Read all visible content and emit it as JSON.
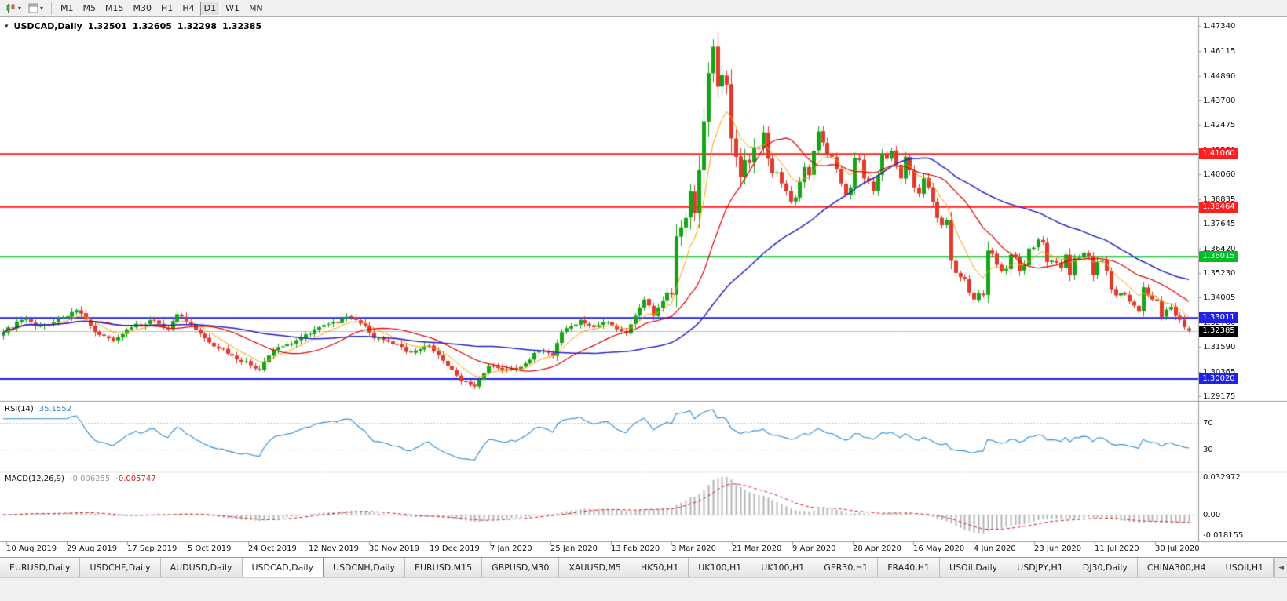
{
  "toolbar": {
    "timeframes": [
      "M1",
      "M5",
      "M15",
      "M30",
      "H1",
      "H4",
      "D1",
      "W1",
      "MN"
    ],
    "active_timeframe": "D1"
  },
  "icons": {
    "caret": "▾",
    "one_click_caret": "▾",
    "tab_scroll_left": "◄"
  },
  "quote_header": {
    "symbol": "USDCAD,Daily",
    "open": "1.32501",
    "high": "1.32605",
    "low": "1.32298",
    "close": "1.32385"
  },
  "tabs": {
    "active_index": 3,
    "items": [
      "EURUSD,Daily",
      "USDCHF,Daily",
      "AUDUSD,Daily",
      "USDCAD,Daily",
      "USDCNH,Daily",
      "EURUSD,M15",
      "GBPUSD,M30",
      "XAUUSD,M5",
      "HK50,H1",
      "UK100,H1",
      "UK100,H1",
      "GER30,H1",
      "FRA40,H1",
      "USOil,Daily",
      "USDJPY,H1",
      "DJ30,Daily",
      "CHINA300,H4",
      "USOil,H1"
    ]
  },
  "colors": {
    "bull_candle": "#17A317",
    "bear_candle": "#E03A2C",
    "current_price_line": "#C0C0C0",
    "chart_bg": "#FFFFFF"
  },
  "chart_data": {
    "type": "candlestick",
    "symbol": "USDCAD",
    "timeframe": "Daily",
    "bars": 260,
    "last_bar": {
      "open": 1.32501,
      "high": 1.32605,
      "low": 1.32298,
      "close": 1.32385
    },
    "peak_bar": {
      "index": 155,
      "high": 1.4668
    },
    "low_bar": {
      "index": 103,
      "low": 1.2952
    },
    "y_axis_labels": [
      "1.47340",
      "1.46115",
      "1.44890",
      "1.43700",
      "1.42475",
      "1.41250",
      "1.40060",
      "1.38835",
      "1.37645",
      "1.36420",
      "1.35230",
      "1.34005",
      "1.32780",
      "1.31590",
      "1.30365",
      "1.29175"
    ],
    "x_axis_labels": [
      "10 Aug 2019",
      "29 Aug 2019",
      "17 Sep 2019",
      "5 Oct 2019",
      "24 Oct 2019",
      "12 Nov 2019",
      "30 Nov 2019",
      "19 Dec 2019",
      "7 Jan 2020",
      "25 Jan 2020",
      "13 Feb 2020",
      "3 Mar 2020",
      "21 Mar 2020",
      "9 Apr 2020",
      "28 Apr 2020",
      "16 May 2020",
      "4 Jun 2020",
      "23 Jun 2020",
      "11 Jul 2020",
      "30 Jul 2020"
    ],
    "price_levels": [
      {
        "value": 1.4106,
        "label": "1.41060",
        "color": "#FF1F1F"
      },
      {
        "value": 1.38464,
        "label": "1.38464",
        "color": "#FF1F1F"
      },
      {
        "value": 1.36015,
        "label": "1.36015",
        "color": "#00BE26"
      },
      {
        "value": 1.33011,
        "label": "1.33011",
        "color": "#2121E8"
      },
      {
        "value": 1.3002,
        "label": "1.30020",
        "color": "#2121E8"
      }
    ],
    "current_price": {
      "value": 1.32385,
      "label": "1.32385",
      "color": "#000000"
    },
    "moving_averages": [
      {
        "name": "fast-ma",
        "period": 8,
        "method": "ema",
        "color": "#FFA000",
        "width": 1
      },
      {
        "name": "mid-ma",
        "period": 20,
        "method": "sma",
        "color": "#E00000",
        "width": 1.2
      },
      {
        "name": "slow-ma",
        "period": 50,
        "method": "sma",
        "color": "#2323CC",
        "width": 1.5
      }
    ],
    "indicators": {
      "rsi": {
        "label": "RSI(14)",
        "value": "35.1552",
        "period": 14,
        "levels": [
          70,
          30
        ],
        "color": "#2E8BD2",
        "level_line_color": "#C8C8C8"
      },
      "macd": {
        "label": "MACD(12,26,9)",
        "main_value": "-0.006255",
        "signal_value": "-0.005747",
        "fast": 12,
        "slow": 26,
        "signal": 9,
        "histogram_color": "#B4B4B4",
        "signal_color": "#D02020",
        "main_color": "#9A9A9A",
        "axis_labels": {
          "top": "0.032972",
          "zero": "0.00",
          "bottom": "-0.018155"
        }
      }
    },
    "close_path": [
      [
        0,
        1.323
      ],
      [
        4,
        1.3292
      ],
      [
        8,
        1.3262
      ],
      [
        13,
        1.33
      ],
      [
        16,
        1.334
      ],
      [
        20,
        1.3232
      ],
      [
        24,
        1.319
      ],
      [
        28,
        1.3256
      ],
      [
        33,
        1.3292
      ],
      [
        36,
        1.3246
      ],
      [
        38,
        1.332
      ],
      [
        44,
        1.3202
      ],
      [
        49,
        1.3126
      ],
      [
        56,
        1.3046
      ],
      [
        59,
        1.3146
      ],
      [
        64,
        1.3192
      ],
      [
        68,
        1.3246
      ],
      [
        71,
        1.3272
      ],
      [
        76,
        1.3306
      ],
      [
        79,
        1.3262
      ],
      [
        81,
        1.3202
      ],
      [
        85,
        1.3172
      ],
      [
        89,
        1.3132
      ],
      [
        93,
        1.3166
      ],
      [
        96,
        1.3092
      ],
      [
        100,
        1.2992
      ],
      [
        103,
        1.2966
      ],
      [
        106,
        1.3066
      ],
      [
        110,
        1.3046
      ],
      [
        113,
        1.3062
      ],
      [
        117,
        1.3142
      ],
      [
        120,
        1.3116
      ],
      [
        122,
        1.3232
      ],
      [
        126,
        1.3292
      ],
      [
        129,
        1.3256
      ],
      [
        132,
        1.3282
      ],
      [
        134,
        1.3246
      ],
      [
        136,
        1.3226
      ],
      [
        138,
        1.3312
      ],
      [
        140,
        1.3392
      ],
      [
        141,
        1.3362
      ],
      [
        142,
        1.3312
      ],
      [
        144,
        1.3386
      ],
      [
        145,
        1.3426
      ],
      [
        146,
        1.3416
      ],
      [
        147,
        1.3702
      ],
      [
        148,
        1.3746
      ],
      [
        149,
        1.3792
      ],
      [
        150,
        1.3922
      ],
      [
        151,
        1.3816
      ],
      [
        152,
        1.4026
      ],
      [
        153,
        1.4266
      ],
      [
        154,
        1.4502
      ],
      [
        155,
        1.4632
      ],
      [
        156,
        1.4436
      ],
      [
        157,
        1.4492
      ],
      [
        158,
        1.4446
      ],
      [
        159,
        1.4182
      ],
      [
        160,
        1.4092
      ],
      [
        161,
        1.3992
      ],
      [
        162,
        1.4076
      ],
      [
        163,
        1.4062
      ],
      [
        164,
        1.4136
      ],
      [
        165,
        1.4132
      ],
      [
        166,
        1.4212
      ],
      [
        167,
        1.4082
      ],
      [
        168,
        1.4012
      ],
      [
        169,
        1.4016
      ],
      [
        170,
        1.3962
      ],
      [
        171,
        1.3922
      ],
      [
        172,
        1.3872
      ],
      [
        173,
        1.3892
      ],
      [
        175,
        1.4042
      ],
      [
        176,
        1.4002
      ],
      [
        177,
        1.4122
      ],
      [
        178,
        1.4216
      ],
      [
        179,
        1.4162
      ],
      [
        180,
        1.4102
      ],
      [
        181,
        1.4092
      ],
      [
        182,
        1.4032
      ],
      [
        183,
        1.3962
      ],
      [
        184,
        1.3906
      ],
      [
        185,
        1.3942
      ],
      [
        186,
        1.4086
      ],
      [
        187,
        1.4076
      ],
      [
        188,
        1.3986
      ],
      [
        189,
        1.3972
      ],
      [
        190,
        1.3926
      ],
      [
        191,
        1.4002
      ],
      [
        192,
        1.4106
      ],
      [
        193,
        1.4082
      ],
      [
        194,
        1.4122
      ],
      [
        195,
        1.4052
      ],
      [
        196,
        1.3986
      ],
      [
        197,
        1.4092
      ],
      [
        198,
        1.4026
      ],
      [
        199,
        1.3942
      ],
      [
        200,
        1.3912
      ],
      [
        201,
        1.3986
      ],
      [
        202,
        1.3942
      ],
      [
        203,
        1.3872
      ],
      [
        204,
        1.3792
      ],
      [
        205,
        1.3756
      ],
      [
        206,
        1.3782
      ],
      [
        207,
        1.3582
      ],
      [
        208,
        1.3522
      ],
      [
        209,
        1.3502
      ],
      [
        210,
        1.3492
      ],
      [
        211,
        1.3426
      ],
      [
        212,
        1.3392
      ],
      [
        213,
        1.3422
      ],
      [
        214,
        1.3412
      ],
      [
        215,
        1.3632
      ],
      [
        216,
        1.3616
      ],
      [
        217,
        1.3562
      ],
      [
        218,
        1.3532
      ],
      [
        219,
        1.3542
      ],
      [
        220,
        1.3612
      ],
      [
        221,
        1.3602
      ],
      [
        222,
        1.3532
      ],
      [
        223,
        1.3562
      ],
      [
        224,
        1.3642
      ],
      [
        225,
        1.3646
      ],
      [
        226,
        1.3686
      ],
      [
        227,
        1.3672
      ],
      [
        228,
        1.3576
      ],
      [
        229,
        1.3582
      ],
      [
        230,
        1.3572
      ],
      [
        231,
        1.3546
      ],
      [
        232,
        1.3612
      ],
      [
        233,
        1.3512
      ],
      [
        234,
        1.3592
      ],
      [
        235,
        1.3596
      ],
      [
        236,
        1.3622
      ],
      [
        237,
        1.3606
      ],
      [
        238,
        1.3512
      ],
      [
        239,
        1.3576
      ],
      [
        240,
        1.3582
      ],
      [
        241,
        1.3532
      ],
      [
        242,
        1.3442
      ],
      [
        243,
        1.3412
      ],
      [
        244,
        1.3422
      ],
      [
        245,
        1.3416
      ],
      [
        246,
        1.3382
      ],
      [
        247,
        1.3362
      ],
      [
        248,
        1.3332
      ],
      [
        249,
        1.3452
      ],
      [
        250,
        1.3412
      ],
      [
        251,
        1.3392
      ],
      [
        252,
        1.3386
      ],
      [
        253,
        1.3306
      ],
      [
        254,
        1.3342
      ],
      [
        255,
        1.3356
      ],
      [
        256,
        1.3312
      ],
      [
        257,
        1.3292
      ],
      [
        258,
        1.3256
      ],
      [
        259,
        1.32385
      ]
    ]
  }
}
